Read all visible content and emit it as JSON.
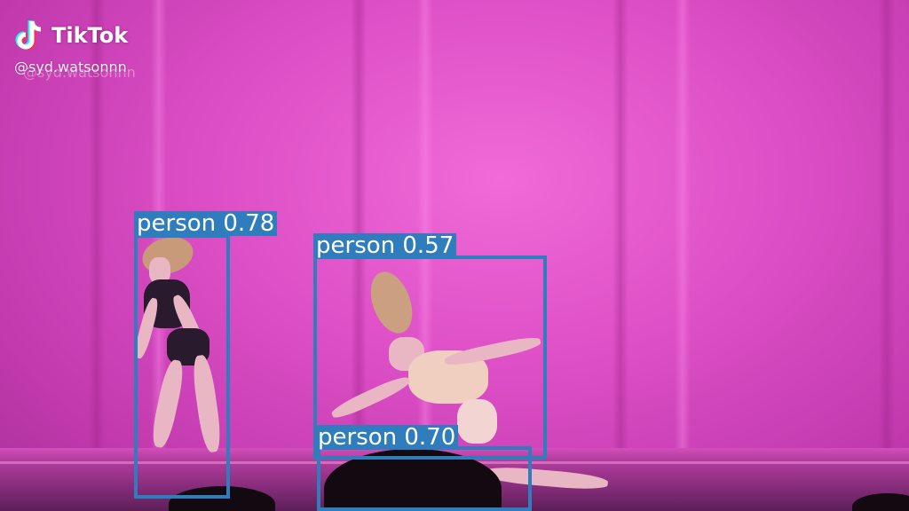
{
  "watermark": {
    "brand": "TikTok",
    "username": "@syd.watsonnn",
    "icon": "tiktok-note-icon"
  },
  "detections": [
    {
      "label": "person 0.78",
      "class": "person",
      "score": 0.78
    },
    {
      "label": "person 0.57",
      "class": "person",
      "score": 0.57
    },
    {
      "label": "person 0.70",
      "class": "person",
      "score": 0.7
    }
  ],
  "colors": {
    "box": "#2f7dbc",
    "stage": "#dd4fc6"
  }
}
